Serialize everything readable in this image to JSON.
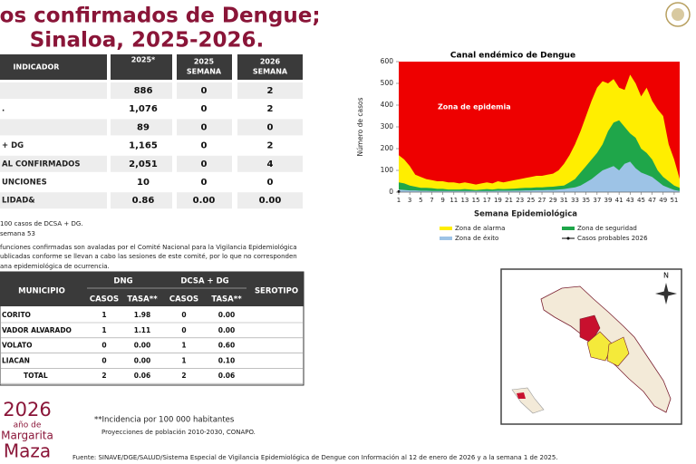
{
  "header": {
    "title_line1": "asos confirmados de Dengue;",
    "title_line2": "Sinaloa, 2025-2026."
  },
  "table1": {
    "headers": [
      [
        "INDICADOR"
      ],
      [
        "2025*"
      ],
      [
        "2025",
        "SEMANA"
      ],
      [
        "2026",
        "SEMANA"
      ]
    ],
    "rows": [
      {
        "values": [
          "886",
          "0",
          "2"
        ]
      },
      {
        "label": ".",
        "values": [
          "1,076",
          "0",
          "2"
        ]
      },
      {
        "values": [
          "89",
          "0",
          "0"
        ]
      },
      {
        "label": "+ DG",
        "values": [
          "1,165",
          "0",
          "2"
        ]
      },
      {
        "label": "AL CONFIRMADOS",
        "values": [
          "2,051",
          "0",
          "4"
        ]
      },
      {
        "label": "UNCIONES",
        "values": [
          "10",
          "0",
          "0"
        ]
      },
      {
        "label": "LIDAD&",
        "values": [
          "0.86",
          "0.00",
          "0.00"
        ]
      }
    ]
  },
  "notes": [
    "100 casos de DCSA + DG.",
    "semana 53",
    "funciones confirmadas son avaladas por el Comité Nacional para la Vigilancia Epidemiológica",
    "ublicadas conforme se llevan a cabo las sesiones de este comité, por lo que no corresponden",
    "ana epidemiológica de ocurrencia."
  ],
  "table2": {
    "headers": [
      "MUNICIPIO",
      "DNG",
      "DCSA + DG",
      "SEROTIPO"
    ],
    "subheaders": [
      "CASOS",
      "TASA**",
      "CASOS",
      "TASA**"
    ],
    "rows": [
      {
        "municipio": "CORITO",
        "cells": [
          "1",
          "1.98",
          "0",
          "0.00"
        ]
      },
      {
        "municipio": "VADOR ALVARADO",
        "cells": [
          "1",
          "1.11",
          "0",
          "0.00"
        ]
      },
      {
        "municipio": "VOLATO",
        "cells": [
          "0",
          "0.00",
          "1",
          "0.60"
        ]
      },
      {
        "municipio": "LIACAN",
        "cells": [
          "0",
          "0.00",
          "1",
          "0.10"
        ]
      },
      {
        "municipio": "TOTAL",
        "cells": [
          "2",
          "0.06",
          "2",
          "0.06"
        ]
      }
    ]
  },
  "footnotes": {
    "incidence": "**Incidencia por 100 000 habitantes",
    "projections": "Proyecciones de población 2010-2030,  CONAPO.",
    "source": "Fuente: SINAVE/DGE/SALUD/Sistema Especial de Vigilancia Epidemiológica de Dengue con Información al 12 de enero de 2026 y a la semana 1 de 2025."
  },
  "logo": {
    "year": "2026",
    "line1": "año de",
    "line2": "Margarita",
    "line3": "Maza"
  },
  "map": {
    "north": "N"
  },
  "chart_data": {
    "type": "area",
    "title": "Canal endémico de Dengue",
    "y_label": "Número de casos",
    "x_label": "Semana Epidemiológica",
    "annotation": "Zona de epidemia",
    "background_color": "#ee0000",
    "x": [
      1,
      2,
      3,
      4,
      5,
      6,
      7,
      8,
      9,
      10,
      11,
      12,
      13,
      14,
      15,
      16,
      17,
      18,
      19,
      20,
      21,
      22,
      23,
      24,
      25,
      26,
      27,
      28,
      29,
      30,
      31,
      32,
      33,
      34,
      35,
      36,
      37,
      38,
      39,
      40,
      41,
      42,
      43,
      44,
      45,
      46,
      47,
      48,
      49,
      50,
      51,
      52
    ],
    "xlim": [
      1,
      52
    ],
    "xticks": [
      1,
      3,
      5,
      7,
      9,
      11,
      13,
      15,
      17,
      19,
      21,
      23,
      25,
      27,
      29,
      31,
      33,
      35,
      37,
      39,
      41,
      43,
      45,
      47,
      49,
      51
    ],
    "ylim": [
      0,
      600
    ],
    "yticks": [
      0,
      100,
      200,
      300,
      400,
      500,
      600
    ],
    "series": [
      {
        "name": "Zona de alarma",
        "color": "#ffee00",
        "values": [
          170,
          150,
          120,
          80,
          70,
          60,
          55,
          50,
          50,
          45,
          45,
          40,
          45,
          40,
          35,
          40,
          45,
          40,
          50,
          45,
          50,
          55,
          60,
          65,
          70,
          75,
          75,
          80,
          85,
          100,
          130,
          170,
          220,
          280,
          350,
          420,
          480,
          510,
          500,
          520,
          480,
          470,
          540,
          500,
          440,
          480,
          420,
          380,
          350,
          220,
          150,
          60
        ]
      },
      {
        "name": "Zona de seguridad",
        "color": "#1fa64a",
        "values": [
          45,
          40,
          30,
          25,
          20,
          20,
          18,
          15,
          15,
          12,
          12,
          12,
          14,
          12,
          10,
          12,
          14,
          12,
          15,
          14,
          15,
          16,
          18,
          20,
          20,
          22,
          22,
          24,
          25,
          28,
          30,
          45,
          60,
          90,
          120,
          150,
          180,
          220,
          280,
          320,
          330,
          300,
          270,
          250,
          200,
          180,
          150,
          100,
          70,
          50,
          30,
          20
        ]
      },
      {
        "name": "Zona de éxito",
        "color": "#9dc3e6",
        "values": [
          12,
          10,
          8,
          8,
          6,
          6,
          5,
          5,
          5,
          5,
          5,
          5,
          5,
          5,
          5,
          5,
          5,
          5,
          6,
          6,
          6,
          7,
          7,
          8,
          8,
          9,
          9,
          10,
          10,
          12,
          14,
          18,
          22,
          30,
          45,
          60,
          80,
          100,
          110,
          120,
          100,
          130,
          140,
          110,
          90,
          80,
          70,
          50,
          30,
          20,
          10,
          5
        ]
      }
    ],
    "line": {
      "name": "Casos probables 2026",
      "color": "#000000",
      "x": [
        1
      ],
      "values": [
        2
      ]
    }
  }
}
